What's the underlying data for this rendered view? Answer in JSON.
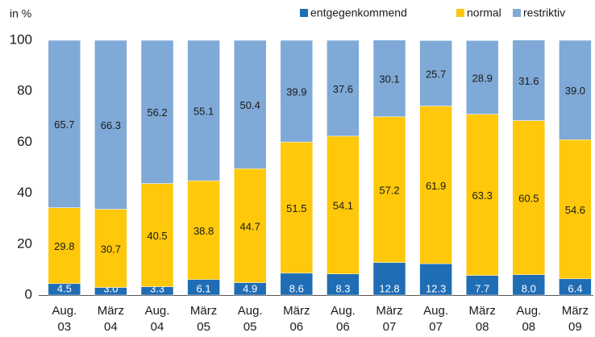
{
  "chart_data": {
    "type": "stacked_bar",
    "y_label": "in %",
    "categories": [
      "Aug.\n03",
      "März\n04",
      "Aug.\n04",
      "März\n05",
      "Aug.\n05",
      "März\n06",
      "Aug.\n06",
      "März\n07",
      "Aug.\n07",
      "März\n08",
      "Aug.\n08",
      "März\n09"
    ],
    "series": [
      {
        "name": "entgegenkommend",
        "color": "#1f6db5",
        "label_color": "#ffffff",
        "values": [
          4.5,
          3.0,
          3.3,
          6.1,
          4.9,
          8.6,
          8.3,
          12.8,
          12.3,
          7.7,
          8.0,
          6.4
        ],
        "value_labels": [
          "4.5",
          "3.0",
          "3.3",
          "6.1",
          "4.9",
          "8.6",
          "8.3",
          "12.8",
          "12.3",
          "7.7",
          "8.0",
          "6.4"
        ]
      },
      {
        "name": "normal",
        "color": "#ffc80a",
        "label_color": "#1a1a1a",
        "values": [
          29.8,
          30.7,
          40.5,
          38.8,
          44.7,
          51.5,
          54.1,
          57.2,
          61.9,
          63.3,
          60.5,
          54.6
        ],
        "value_labels": [
          "29.8",
          "30.7",
          "40.5",
          "38.8",
          "44.7",
          "51.5",
          "54.1",
          "57.2",
          "61.9",
          "63.3",
          "60.5",
          "54.6"
        ]
      },
      {
        "name": "restriktiv",
        "color": "#7fa9d6",
        "label_color": "#1a1a1a",
        "values": [
          65.7,
          66.3,
          56.2,
          55.1,
          50.4,
          39.9,
          37.6,
          30.1,
          25.7,
          28.9,
          31.6,
          39.0
        ],
        "value_labels": [
          "65.7",
          "66.3",
          "56.2",
          "55.1",
          "50.4",
          "39.9",
          "37.6",
          "30.1",
          "25.7",
          "28.9",
          "31.6",
          "39.0"
        ]
      }
    ],
    "ylim": [
      0,
      100
    ],
    "yticks": [
      0,
      20,
      40,
      60,
      80,
      100
    ],
    "grid": false
  }
}
